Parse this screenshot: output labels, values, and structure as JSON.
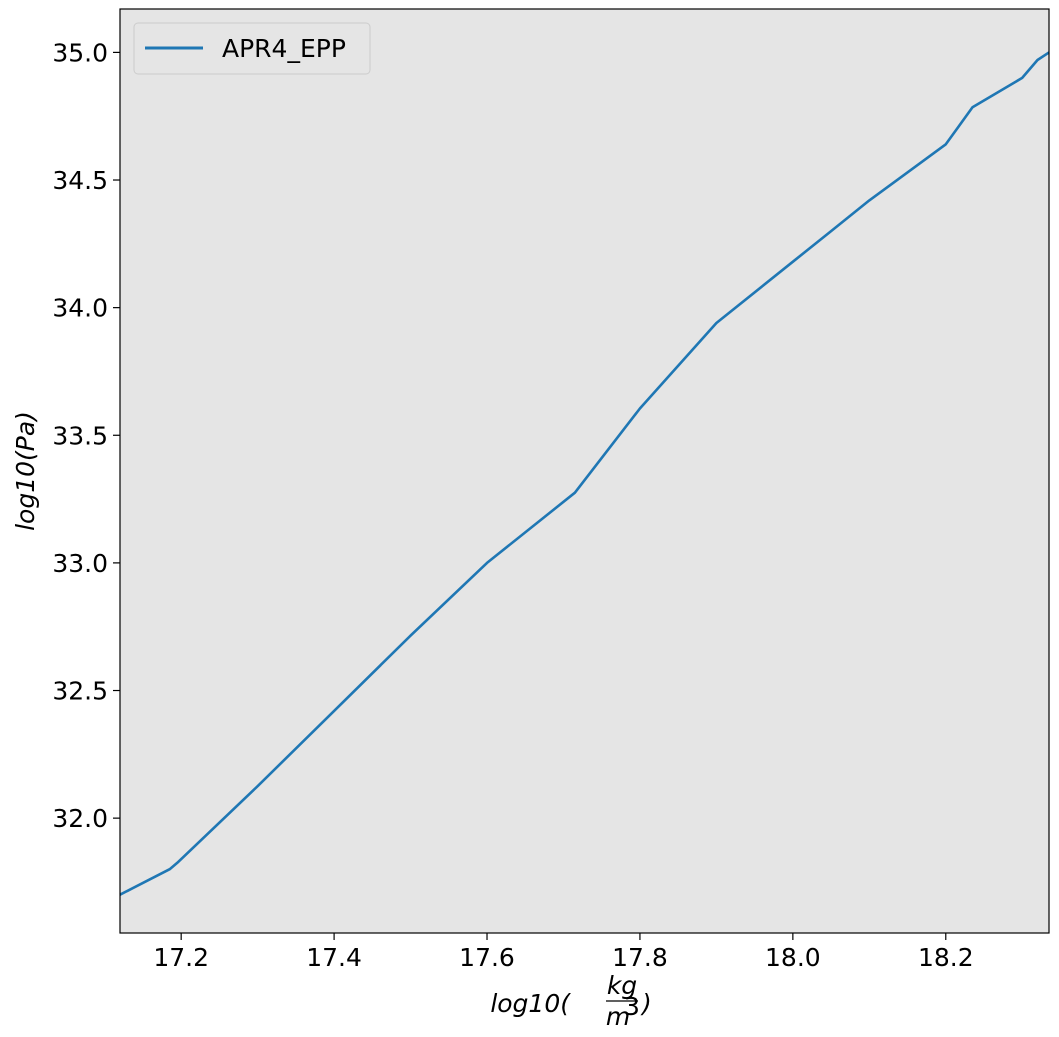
{
  "chart_data": {
    "type": "line",
    "title": "",
    "xlabel": {
      "prefix": "log10(",
      "frac_num": "kg",
      "frac_den": "m",
      "frac_den_sup": "3",
      "suffix": ")"
    },
    "ylabel": "log10(Pa)",
    "xlim": [
      17.12,
      18.335
    ],
    "ylim": [
      31.55,
      35.17
    ],
    "xticks": [
      17.2,
      17.4,
      17.6,
      17.8,
      18.0,
      18.2
    ],
    "xtick_labels": [
      "17.2",
      "17.4",
      "17.6",
      "17.8",
      "18.0",
      "18.2"
    ],
    "yticks": [
      32.0,
      32.5,
      33.0,
      33.5,
      34.0,
      34.5,
      35.0
    ],
    "ytick_labels": [
      "32.0",
      "32.5",
      "33.0",
      "33.5",
      "34.0",
      "34.5",
      "35.0"
    ],
    "grid": false,
    "legend_position": "top-left",
    "background_color": "#e5e5e5",
    "series": [
      {
        "name": "APR4_EPP",
        "color": "#1f77b4",
        "x": [
          17.12,
          17.185,
          17.195,
          17.3,
          17.4,
          17.5,
          17.6,
          17.715,
          17.8,
          17.9,
          18.0,
          18.05,
          18.1,
          18.2,
          18.235,
          18.3,
          18.32,
          18.335
        ],
        "y": [
          31.7,
          31.8,
          31.825,
          32.125,
          32.42,
          32.715,
          33.0,
          33.275,
          33.605,
          33.94,
          34.18,
          34.3,
          34.42,
          34.64,
          34.785,
          34.9,
          34.97,
          35.0
        ]
      }
    ]
  }
}
